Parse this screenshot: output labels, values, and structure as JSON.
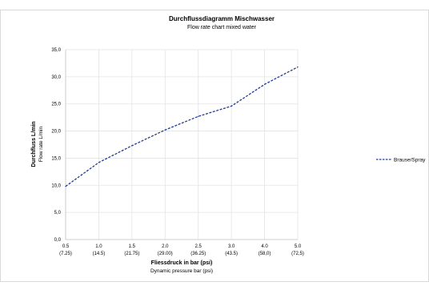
{
  "chart_data": {
    "type": "line",
    "title": "Durchflussdiagramm Mischwasser",
    "subtitle": "Flow rate chart mixed water",
    "xlabel": "Fliessdruck in bar (psi)",
    "xlabel_sub": "Dynamic pressure bar (psi)",
    "ylabel": "Durchfluss L/min",
    "ylabel_sub": "Flow rate L/min",
    "categories": [
      "0.5",
      "1.0",
      "1.5",
      "2.0",
      "2.5",
      "3.0",
      "4.0",
      "5.0"
    ],
    "categories_sub": [
      "(7.25)",
      "(14.5)",
      "(21.75)",
      "(29.00)",
      "(36.25)",
      "(43.5)",
      "(58,0)",
      "(72,5)"
    ],
    "ylim": [
      0,
      35
    ],
    "yticks": [
      "0,0",
      "5,0",
      "10,0",
      "15,0",
      "20,0",
      "25,0",
      "30,0",
      "35,0"
    ],
    "ytick_values": [
      0,
      5,
      10,
      15,
      20,
      25,
      30,
      35
    ],
    "grid": true,
    "legend_position": "right",
    "series": [
      {
        "name": "Brause/Spray",
        "values": [
          9.8,
          14.2,
          17.3,
          20.2,
          22.7,
          24.6,
          28.6,
          31.8
        ],
        "color": "#1f3a93",
        "dash": "dashed"
      }
    ]
  }
}
